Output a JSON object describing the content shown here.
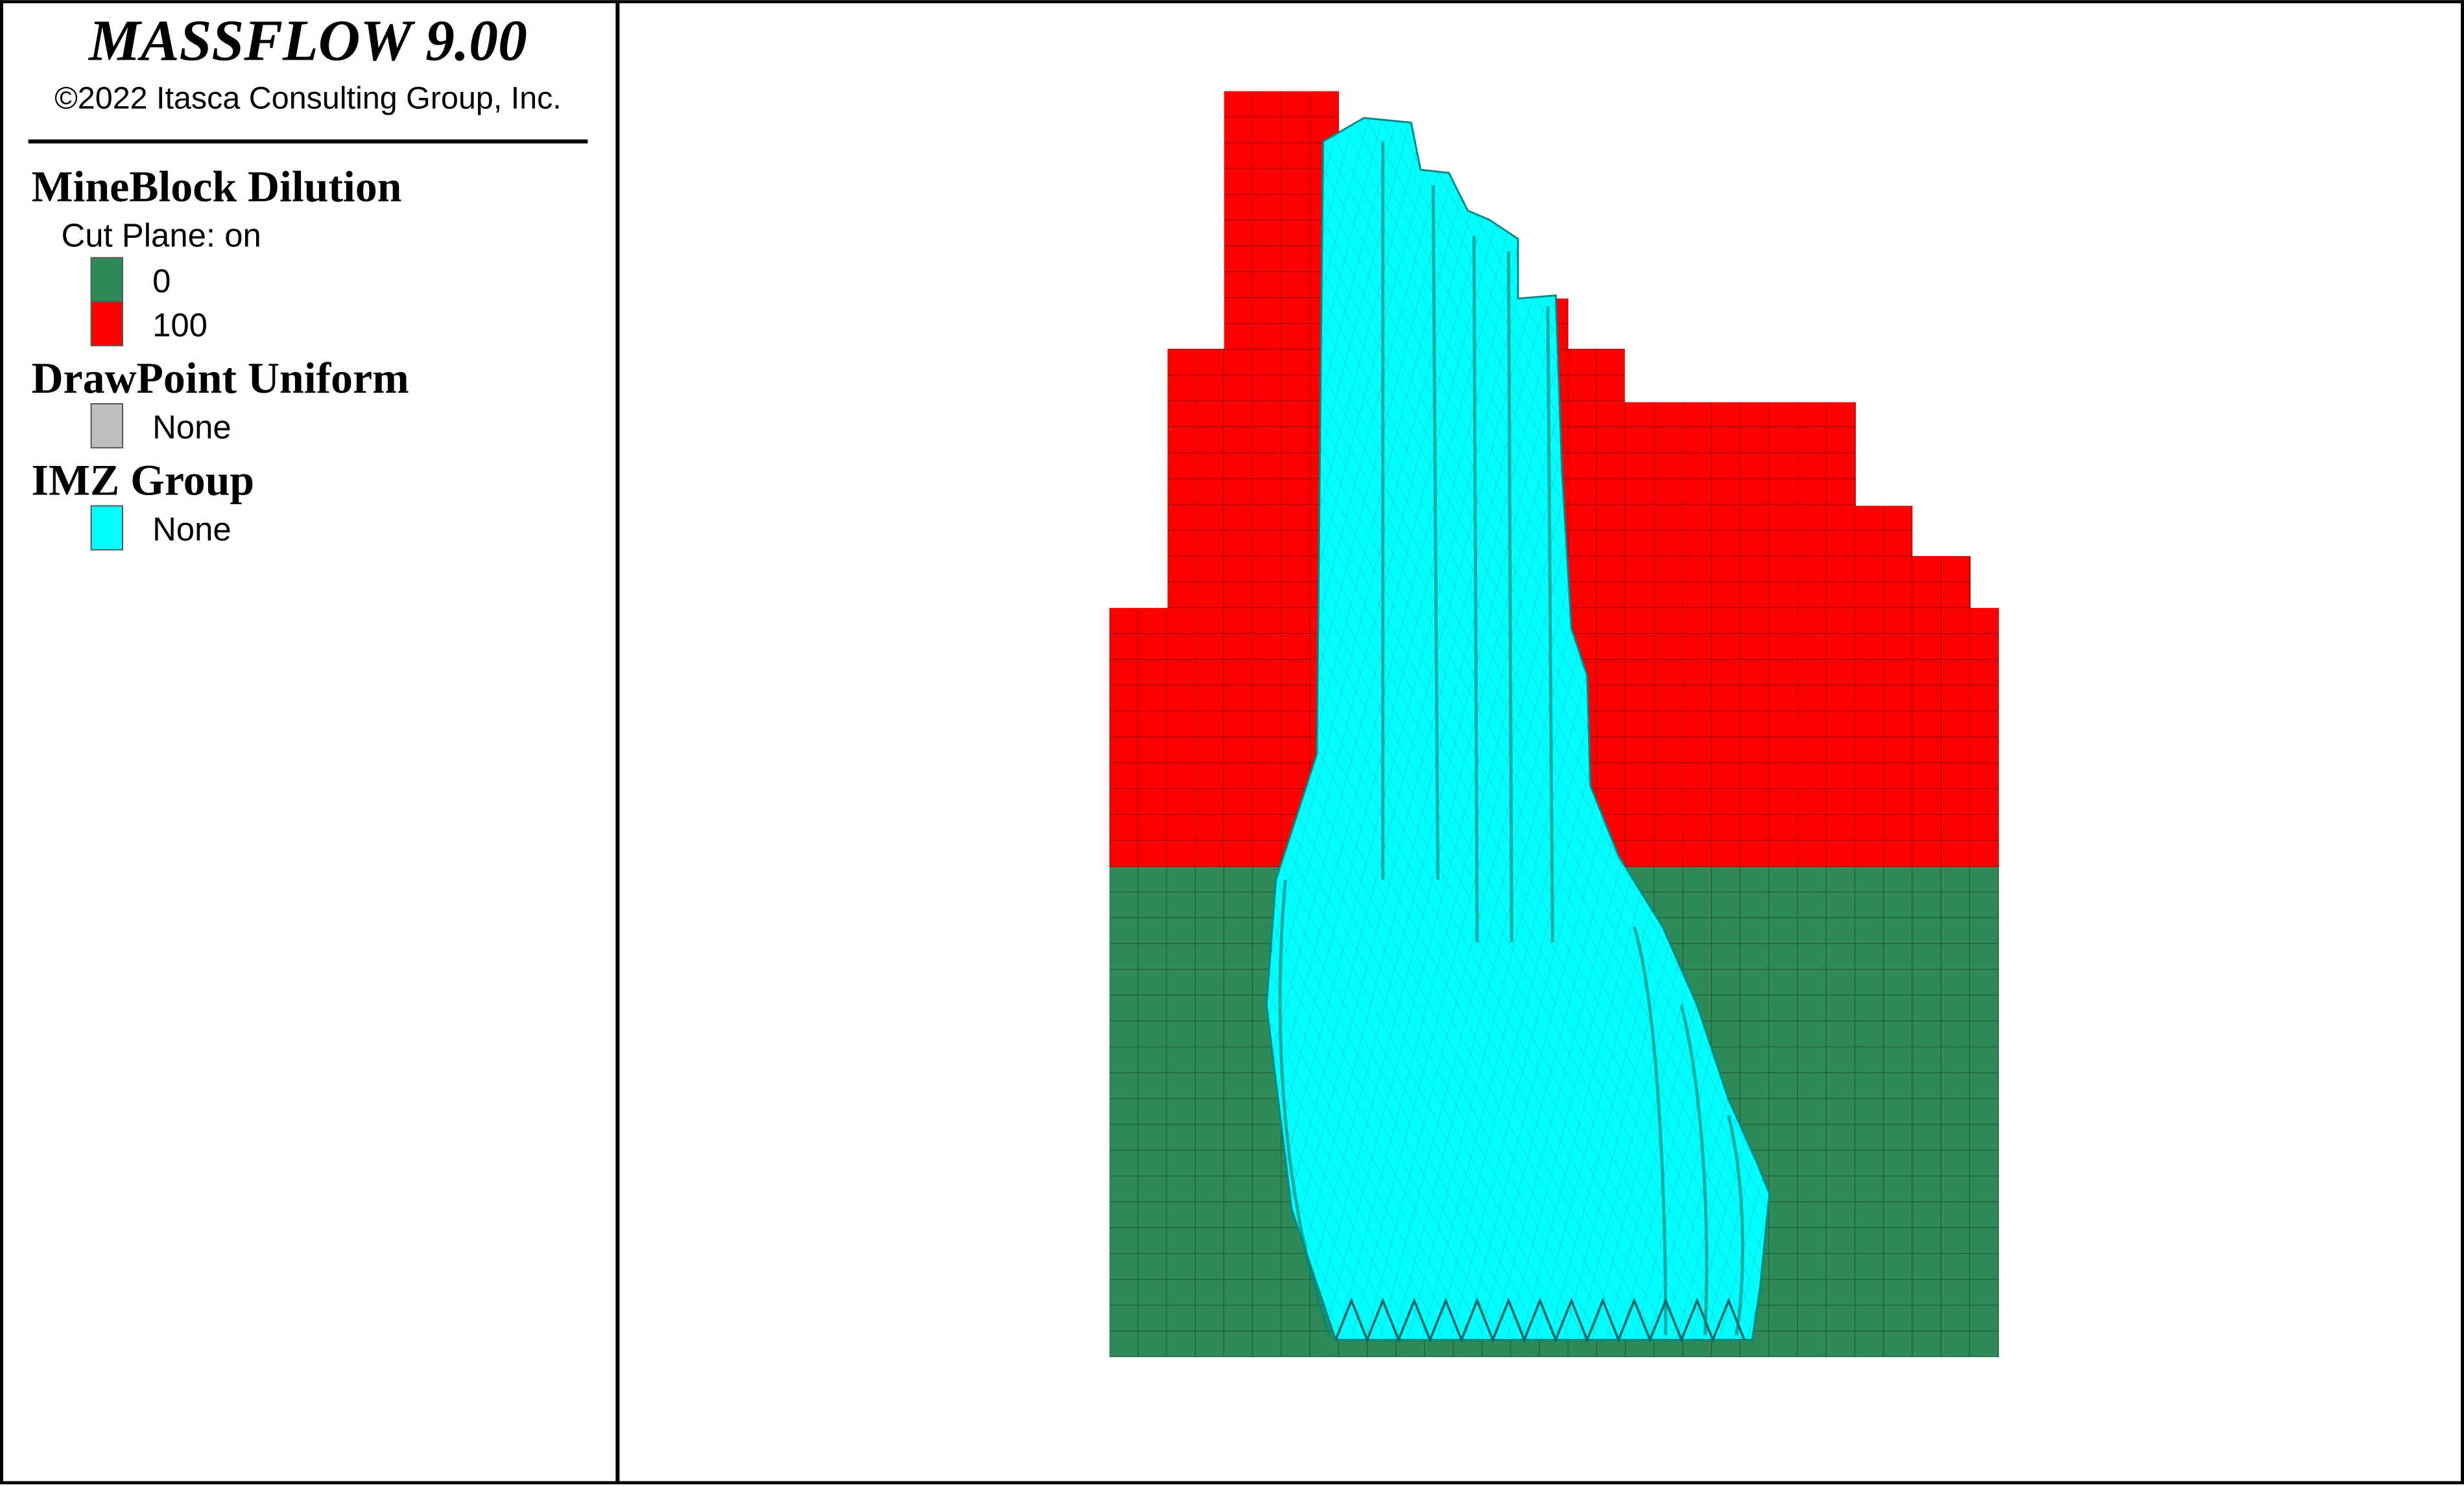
{
  "header": {
    "title": "MASSFLOW 9.00",
    "copyright": "©2022 Itasca Consulting Group, Inc."
  },
  "legend": {
    "groups": [
      {
        "title": "MineBlock Dilution",
        "subtitle": "Cut Plane: on",
        "items": [
          {
            "label": "0",
            "color": "#2e8b57"
          },
          {
            "label": "100",
            "color": "#ff0000"
          }
        ]
      },
      {
        "title": "DrawPoint Uniform",
        "items": [
          {
            "label": "None",
            "color": "#bebebe"
          }
        ]
      },
      {
        "title": "IMZ Group",
        "items": [
          {
            "label": "None",
            "color": "#00ffff"
          }
        ]
      }
    ]
  }
}
